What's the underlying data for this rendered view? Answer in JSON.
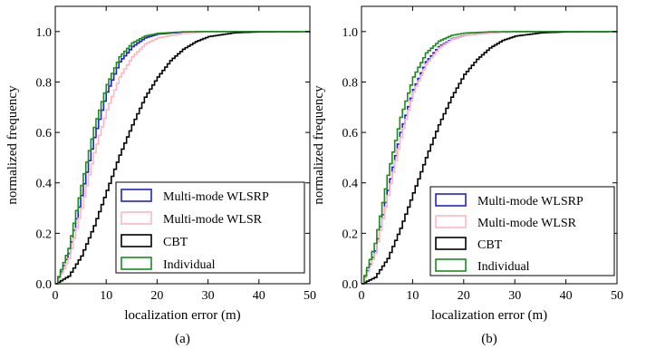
{
  "chart_data": [
    {
      "type": "line",
      "subtitle": "(a)",
      "xlabel": "localization error (m)",
      "ylabel": "normalized frequency",
      "xlim": [
        0,
        50
      ],
      "ylim": [
        0,
        1.1
      ],
      "xticks": [
        "0",
        "10",
        "20",
        "30",
        "40",
        "50"
      ],
      "yticks": [
        "0.0",
        "0.2",
        "0.4",
        "0.6",
        "0.8",
        "1.0"
      ],
      "legend": "center-right",
      "grid": false,
      "series": [
        {
          "name": "Multi-mode WLSRP",
          "color": "#1f1fd6",
          "x": [
            0,
            2.5,
            5,
            7.5,
            10,
            12.5,
            15,
            17.5,
            20,
            25,
            30,
            35,
            50
          ],
          "y": [
            0,
            0.12,
            0.35,
            0.58,
            0.76,
            0.88,
            0.94,
            0.975,
            0.99,
            0.998,
            1.0,
            1.0,
            1.0
          ]
        },
        {
          "name": "Multi-mode WLSR",
          "color": "#ffb6c1",
          "x": [
            0,
            2.5,
            5,
            7.5,
            10,
            12.5,
            15,
            17.5,
            20,
            25,
            30,
            35,
            50
          ],
          "y": [
            0,
            0.1,
            0.3,
            0.52,
            0.69,
            0.82,
            0.9,
            0.95,
            0.975,
            0.993,
            0.999,
            1.0,
            1.0
          ]
        },
        {
          "name": "CBT",
          "color": "#000000",
          "x": [
            0,
            2.5,
            5,
            7.5,
            10,
            12.5,
            15,
            17.5,
            20,
            22.5,
            25,
            27.5,
            30,
            35,
            40,
            50
          ],
          "y": [
            0,
            0.03,
            0.11,
            0.23,
            0.37,
            0.51,
            0.63,
            0.74,
            0.82,
            0.885,
            0.93,
            0.96,
            0.98,
            0.995,
            0.999,
            1.0
          ]
        },
        {
          "name": "Individual",
          "color": "#1a8c1a",
          "x": [
            0,
            2.5,
            5,
            7.5,
            10,
            12.5,
            15,
            17.5,
            20,
            25,
            30,
            35,
            50
          ],
          "y": [
            0,
            0.14,
            0.39,
            0.62,
            0.79,
            0.9,
            0.955,
            0.982,
            0.993,
            0.999,
            1.0,
            1.0,
            1.0
          ]
        }
      ]
    },
    {
      "type": "line",
      "subtitle": "(b)",
      "xlabel": "localization error (m)",
      "ylabel": "normalized frequency",
      "xlim": [
        0,
        50
      ],
      "ylim": [
        0,
        1.1
      ],
      "xticks": [
        "0",
        "10",
        "20",
        "30",
        "40",
        "50"
      ],
      "yticks": [
        "0.0",
        "0.2",
        "0.4",
        "0.6",
        "0.8",
        "1.0"
      ],
      "legend": "lower-right",
      "grid": false,
      "series": [
        {
          "name": "Multi-mode WLSRP",
          "color": "#1f1fd6",
          "x": [
            0,
            2.5,
            5,
            7.5,
            10,
            12.5,
            15,
            17.5,
            20,
            25,
            30,
            35,
            50
          ],
          "y": [
            0,
            0.13,
            0.37,
            0.6,
            0.77,
            0.88,
            0.94,
            0.97,
            0.985,
            0.995,
            0.999,
            1.0,
            1.0
          ]
        },
        {
          "name": "Multi-mode WLSR",
          "color": "#ffb6c1",
          "x": [
            0,
            2.5,
            5,
            7.5,
            10,
            12.5,
            15,
            17.5,
            20,
            25,
            30,
            35,
            50
          ],
          "y": [
            0,
            0.12,
            0.35,
            0.58,
            0.76,
            0.87,
            0.935,
            0.968,
            0.984,
            0.995,
            0.999,
            1.0,
            1.0
          ]
        },
        {
          "name": "CBT",
          "color": "#000000",
          "x": [
            0,
            2.5,
            5,
            7.5,
            10,
            12.5,
            15,
            17.5,
            20,
            22.5,
            25,
            27.5,
            30,
            35,
            40,
            50
          ],
          "y": [
            0,
            0.025,
            0.1,
            0.22,
            0.36,
            0.5,
            0.63,
            0.74,
            0.83,
            0.89,
            0.935,
            0.965,
            0.982,
            0.995,
            0.999,
            1.0
          ]
        },
        {
          "name": "Individual",
          "color": "#1a8c1a",
          "x": [
            0,
            2.5,
            5,
            7.5,
            10,
            12.5,
            15,
            17.5,
            20,
            25,
            30,
            35,
            50
          ],
          "y": [
            0,
            0.16,
            0.43,
            0.66,
            0.82,
            0.915,
            0.962,
            0.985,
            0.994,
            0.999,
            1.0,
            1.0,
            1.0
          ]
        }
      ]
    }
  ]
}
